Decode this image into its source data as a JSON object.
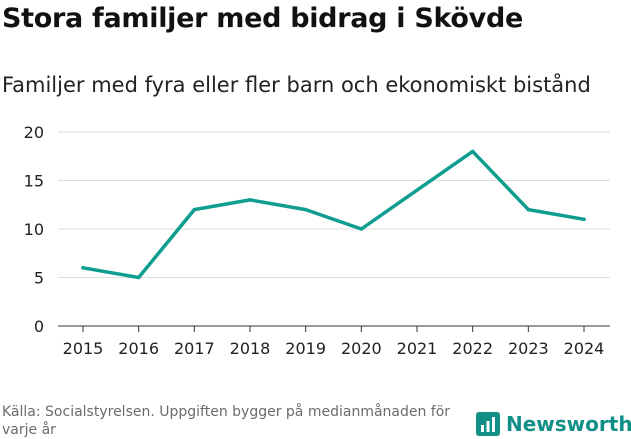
{
  "header": {
    "title": "Stora familjer med bidrag i Skövde",
    "subtitle": "Familjer med fyra eller fler barn och ekonomiskt bistånd"
  },
  "footer": {
    "source": "Källa: Socialstyrelsen. Uppgiften bygger på medianmånaden för varje år",
    "brand": "Newsworthy"
  },
  "colors": {
    "line": "#0f9d8f",
    "brand": "#0f8f86",
    "grid": "#dddddd"
  },
  "chart_data": {
    "type": "line",
    "title": "Stora familjer med bidrag i Skövde",
    "subtitle": "Familjer med fyra eller fler barn och ekonomiskt bistånd",
    "xlabel": "",
    "ylabel": "",
    "categories": [
      "2015",
      "2016",
      "2017",
      "2018",
      "2019",
      "2020",
      "2021",
      "2022",
      "2023",
      "2024"
    ],
    "series": [
      {
        "name": "Familjer",
        "values": [
          6,
          5,
          12,
          13,
          12,
          10,
          14,
          18,
          12,
          11
        ]
      }
    ],
    "ylim": [
      0,
      20
    ],
    "yticks": [
      0,
      5,
      10,
      15,
      20
    ],
    "grid": true
  }
}
